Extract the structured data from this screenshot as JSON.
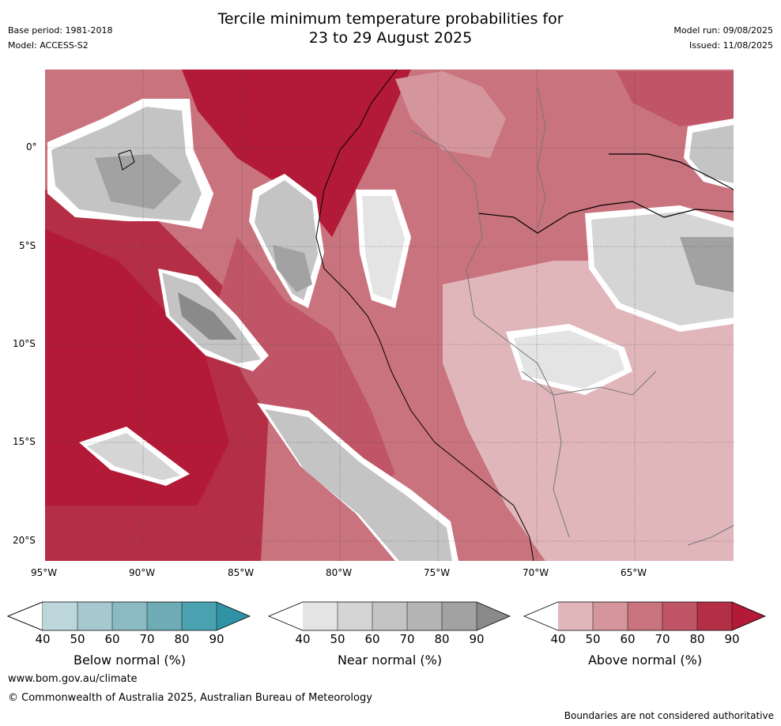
{
  "header": {
    "base_period": "Base period: 1981-2018",
    "model": "Model: ACCESS-S2",
    "title_line1": "Tercile minimum temperature probabilities for",
    "title_line2": "23 to 29 August 2025",
    "model_run": "Model run: 09/08/2025",
    "issued": "Issued: 11/08/2025"
  },
  "map": {
    "lon_ticks": [
      "95°W",
      "90°W",
      "85°W",
      "80°W",
      "75°W",
      "70°W",
      "65°W"
    ],
    "lat_ticks": [
      "0°",
      "5°S",
      "10°S",
      "15°S",
      "20°S"
    ]
  },
  "colorbars": [
    {
      "label": "Below normal (%)",
      "ticks": [
        "40",
        "50",
        "60",
        "70",
        "80",
        "90"
      ],
      "colors": [
        "#bcd6dc",
        "#a6c9cf",
        "#8bbac2",
        "#6eabb5",
        "#4aa1b0",
        "#2f93a5"
      ]
    },
    {
      "label": "Near normal (%)",
      "ticks": [
        "40",
        "50",
        "60",
        "70",
        "80",
        "90"
      ],
      "colors": [
        "#e4e4e4",
        "#d5d5d5",
        "#c4c4c4",
        "#b4b4b4",
        "#a2a2a2",
        "#8a8a8a"
      ]
    },
    {
      "label": "Above normal (%)",
      "ticks": [
        "40",
        "50",
        "60",
        "70",
        "80",
        "90"
      ],
      "colors": [
        "#e0b6bb",
        "#d5959d",
        "#c9737e",
        "#bf5566",
        "#b42f45",
        "#b21a37"
      ]
    }
  ],
  "footer": {
    "url": "www.bom.gov.au/climate",
    "copyright": "© Commonwealth of Australia 2025, Australian Bureau of Meteorology",
    "disclaimer": "Boundaries are not considered authoritative"
  }
}
